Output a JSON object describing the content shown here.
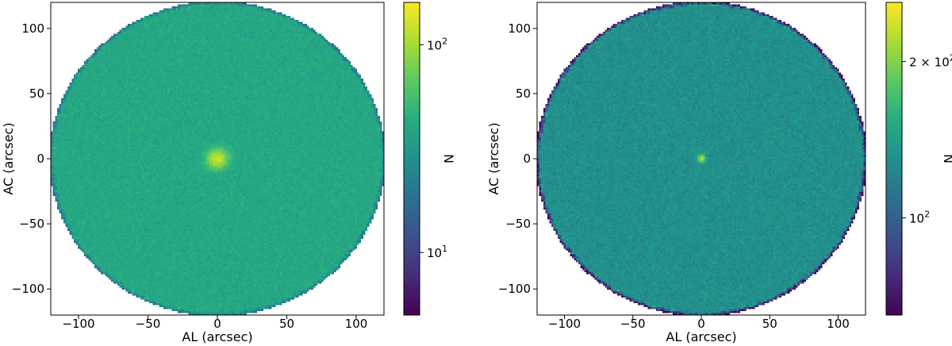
{
  "chart_data": [
    {
      "type": "heatmap",
      "xlabel": "AL (arcsec)",
      "ylabel": "AC (arcsec)",
      "xlim": [
        -120,
        120
      ],
      "ylim": [
        -120,
        120
      ],
      "xticks": [
        -100,
        -50,
        0,
        50,
        100
      ],
      "yticks": [
        -100,
        -50,
        0,
        50,
        100
      ],
      "xtick_labels": [
        "−100",
        "−50",
        "0",
        "50",
        "100"
      ],
      "ytick_labels": [
        "−100",
        "−50",
        "0",
        "50",
        "100"
      ],
      "aperture_radius": 121,
      "background_level": 40,
      "center_peak": 120,
      "center_width": 5,
      "colorbar": {
        "label": "N",
        "scale": "log",
        "vmin": 5,
        "vmax": 160,
        "ticks": [
          {
            "value": 10,
            "label": "10",
            "exp": "1"
          },
          {
            "value": 100,
            "label": "10",
            "exp": "2"
          }
        ]
      }
    },
    {
      "type": "heatmap",
      "xlabel": "AL (arcsec)",
      "ylabel": "AC (arcsec)",
      "xlim": [
        -120,
        120
      ],
      "ylim": [
        -120,
        120
      ],
      "xticks": [
        -100,
        -50,
        0,
        50,
        100
      ],
      "yticks": [
        -100,
        -50,
        0,
        50,
        100
      ],
      "xtick_labels": [
        "−100",
        "−50",
        "0",
        "50",
        "100"
      ],
      "ytick_labels": [
        "−100",
        "−50",
        "0",
        "50",
        "100"
      ],
      "aperture_radius": 121,
      "background_level": 130,
      "center_peak": 230,
      "center_width": 2,
      "colorbar": {
        "label": "N",
        "scale": "log",
        "vmin": 65,
        "vmax": 260,
        "ticks": [
          {
            "value": 100,
            "label": "10",
            "exp": "2"
          },
          {
            "value": 200,
            "label": "2 × 10",
            "exp": "2"
          }
        ]
      }
    }
  ],
  "colors": {
    "colormap": "viridis",
    "outside_aperture": "#ffffff",
    "axis_frame": "#000000"
  }
}
